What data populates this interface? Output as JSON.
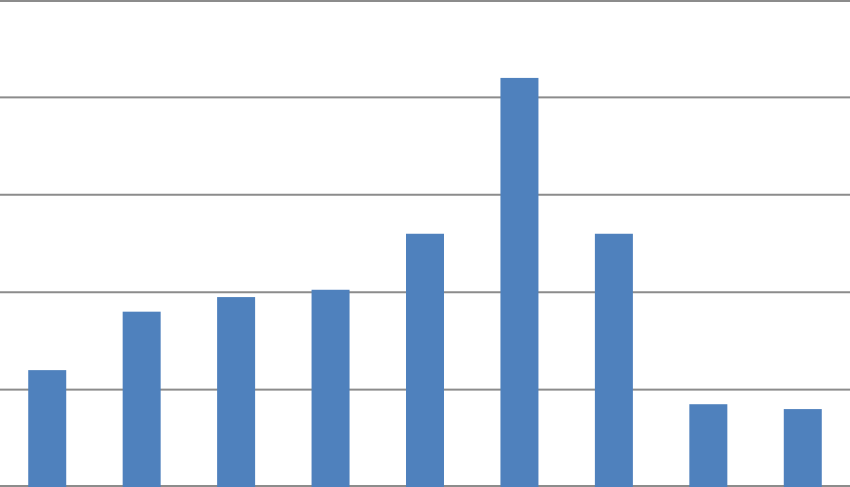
{
  "chart_data": {
    "type": "bar",
    "values": [
      2.4,
      3.6,
      3.9,
      4.05,
      5.2,
      8.4,
      5.2,
      1.7,
      1.6
    ],
    "ylim": [
      0,
      10
    ],
    "yticks": [
      0,
      2,
      4,
      6,
      8,
      10
    ],
    "grid": true,
    "legend": "none"
  },
  "colors": {
    "bar": "#4F81BD",
    "grid": "#8C8C8C",
    "background": "#FFFFFF"
  }
}
